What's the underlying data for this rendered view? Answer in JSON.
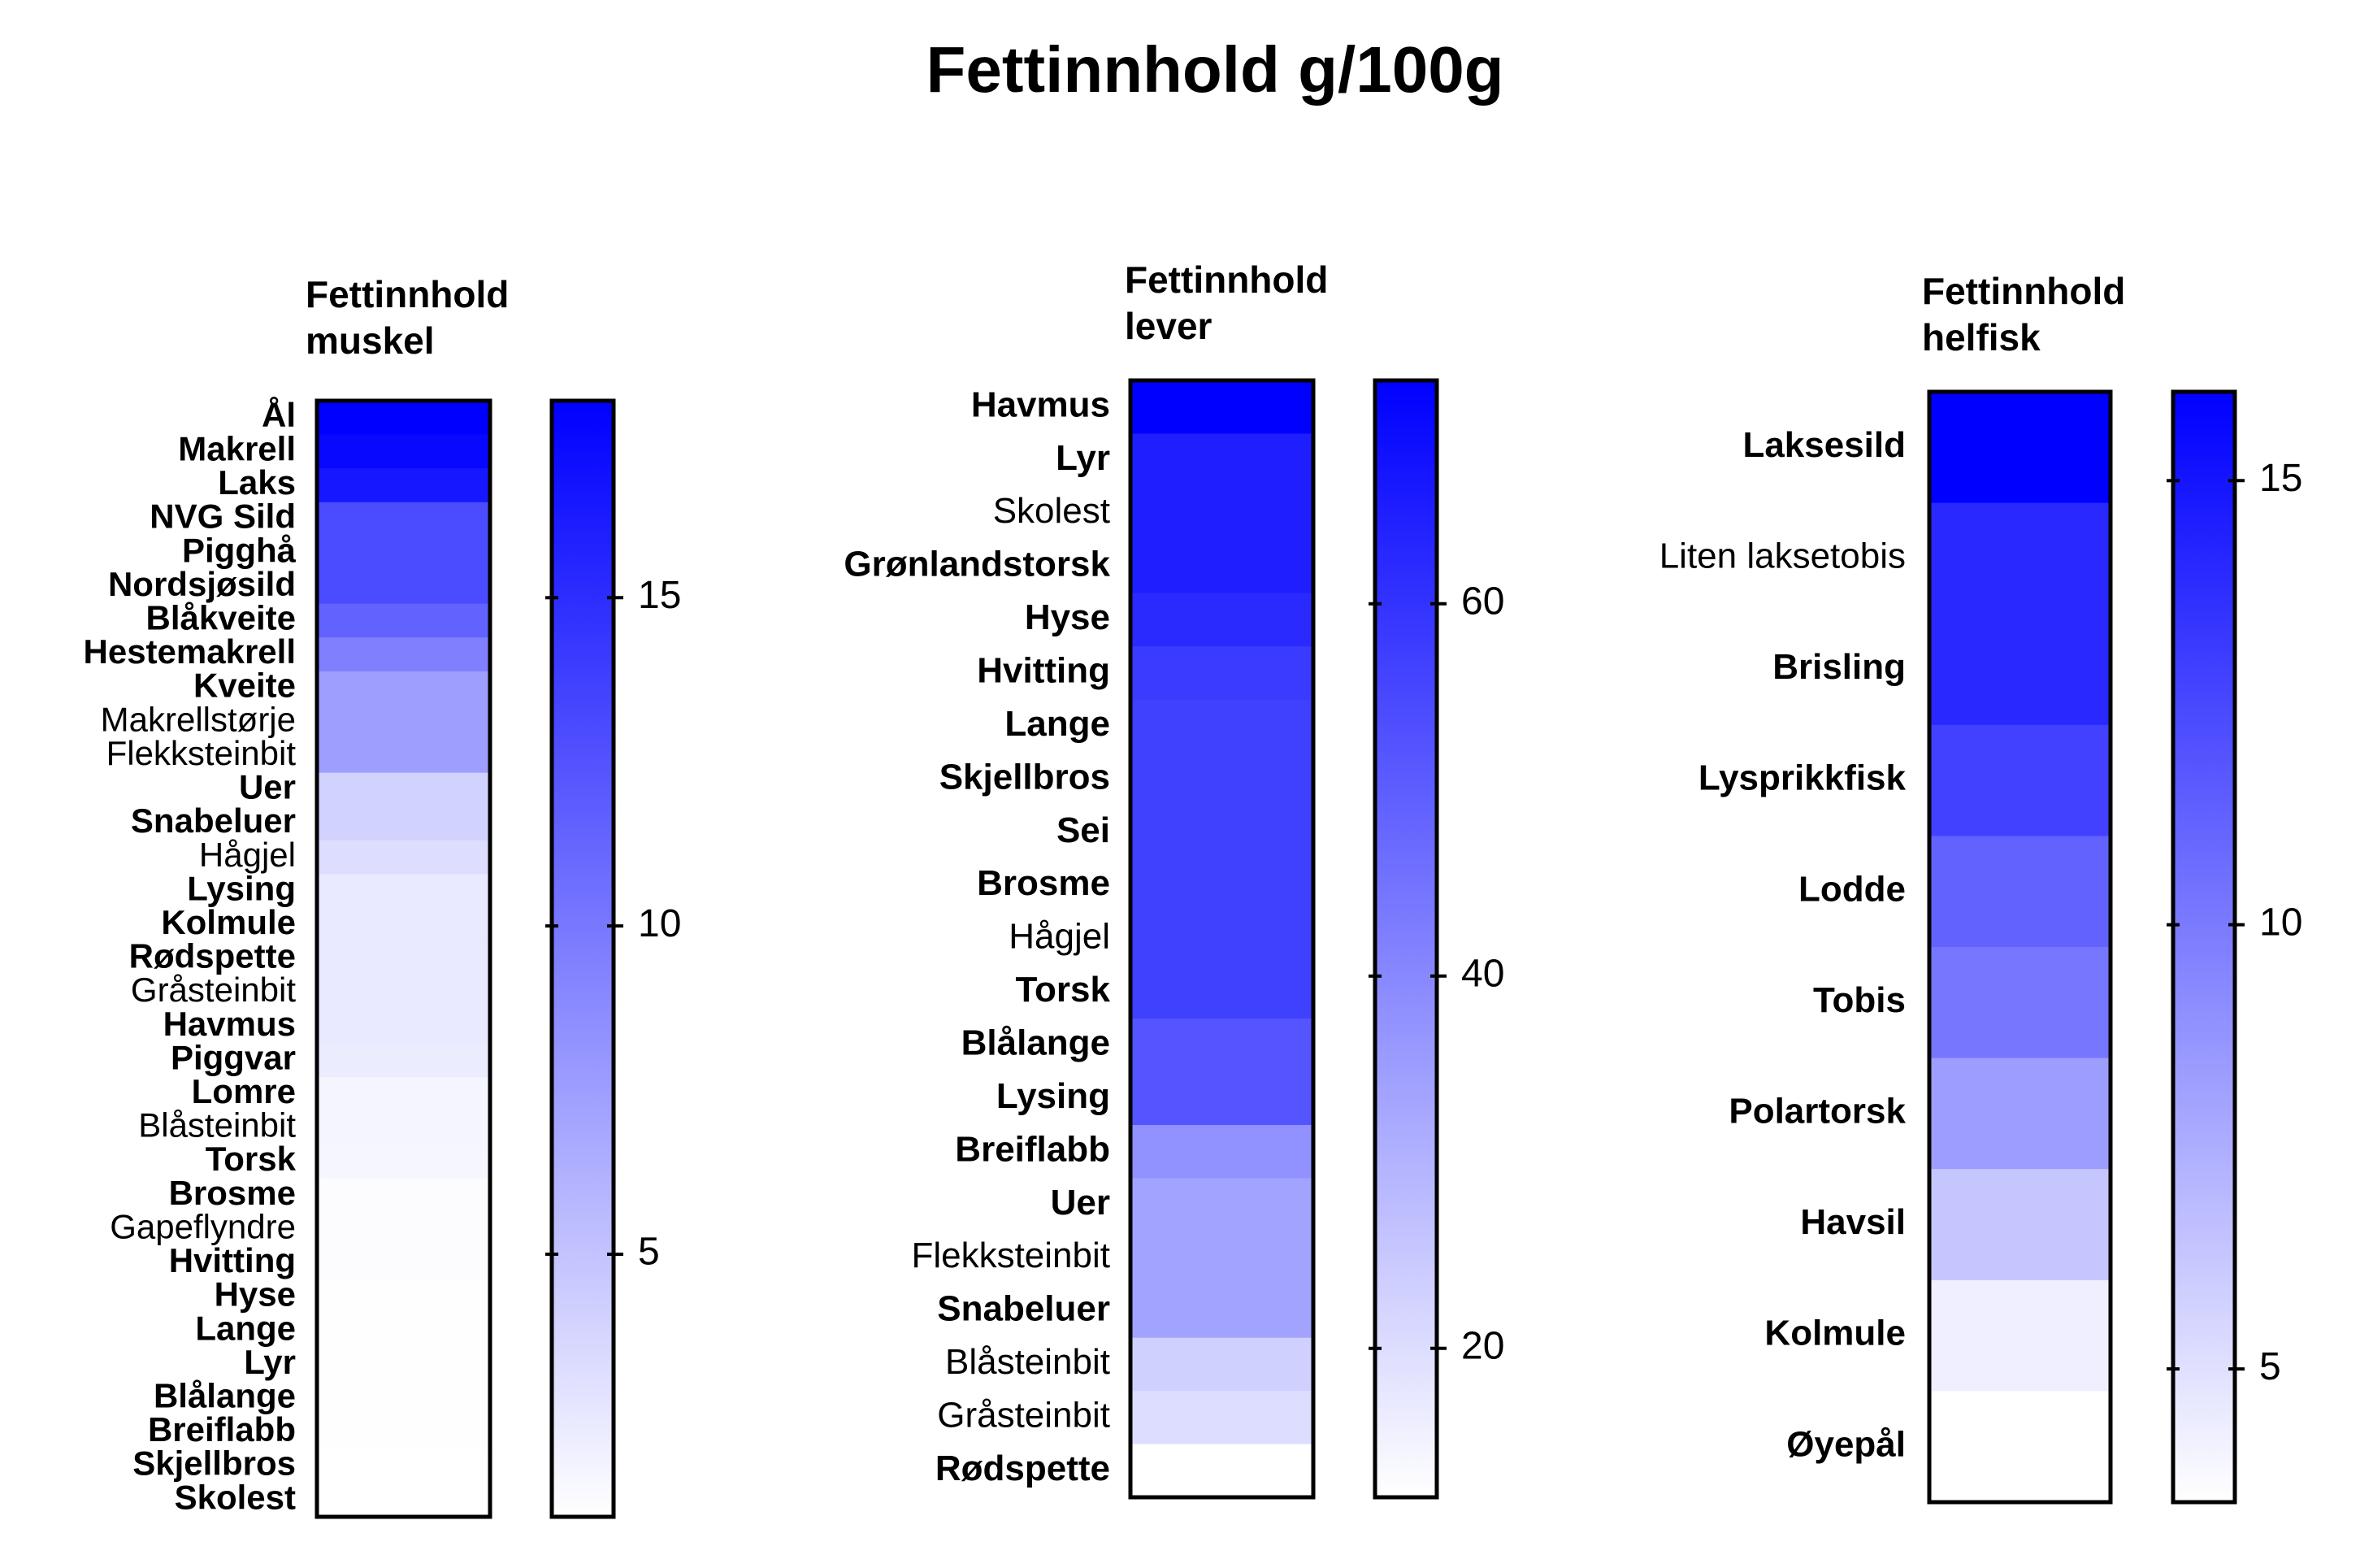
{
  "title": "Fettinnhold g/100g",
  "chart_data": [
    {
      "type": "heatmap",
      "title_lines": [
        "Fettinnhold",
        "muskel"
      ],
      "color_min": "#ffffff",
      "color_max": "#0000ff",
      "scale_range": [
        1,
        18
      ],
      "scale_ticks": [
        "5",
        "10",
        "15"
      ],
      "scale_tick_values": [
        5,
        10,
        15
      ],
      "rows": [
        {
          "label": "Ål",
          "value": 18,
          "bold": true
        },
        {
          "label": "Makrell",
          "value": 17.5,
          "bold": true
        },
        {
          "label": "Laks",
          "value": 16.5,
          "bold": true
        },
        {
          "label": "NVG Sild",
          "value": 13,
          "bold": true
        },
        {
          "label": "Pigghå",
          "value": 13,
          "bold": true
        },
        {
          "label": "Nordsjøsild",
          "value": 13,
          "bold": true
        },
        {
          "label": "Blåkveite",
          "value": 11.5,
          "bold": true
        },
        {
          "label": "Hestemakrell",
          "value": 9.5,
          "bold": true
        },
        {
          "label": "Kveite",
          "value": 7.5,
          "bold": true
        },
        {
          "label": "Makrellstørje",
          "value": 7.5,
          "bold": false
        },
        {
          "label": "Flekksteinbit",
          "value": 7.5,
          "bold": false
        },
        {
          "label": "Uer",
          "value": 4,
          "bold": true
        },
        {
          "label": "Snabeluer",
          "value": 4,
          "bold": true
        },
        {
          "label": "Hågjel",
          "value": 3.3,
          "bold": false
        },
        {
          "label": "Lysing",
          "value": 2.5,
          "bold": true
        },
        {
          "label": "Kolmule",
          "value": 2.5,
          "bold": true
        },
        {
          "label": "Rødspette",
          "value": 2.5,
          "bold": true
        },
        {
          "label": "Gråsteinbit",
          "value": 2.5,
          "bold": false
        },
        {
          "label": "Havmus",
          "value": 2.5,
          "bold": true
        },
        {
          "label": "Piggvar",
          "value": 2.3,
          "bold": true
        },
        {
          "label": "Lomre",
          "value": 1.7,
          "bold": true
        },
        {
          "label": "Blåsteinbit",
          "value": 1.7,
          "bold": false
        },
        {
          "label": "Torsk",
          "value": 1.6,
          "bold": true
        },
        {
          "label": "Brosme",
          "value": 1.2,
          "bold": true
        },
        {
          "label": "Gapeflyndre",
          "value": 1.2,
          "bold": false
        },
        {
          "label": "Hvitting",
          "value": 1.2,
          "bold": true
        },
        {
          "label": "Hyse",
          "value": 1.1,
          "bold": true
        },
        {
          "label": "Lange",
          "value": 1.1,
          "bold": true
        },
        {
          "label": "Lyr",
          "value": 1.1,
          "bold": true
        },
        {
          "label": "Blålange",
          "value": 1.1,
          "bold": true
        },
        {
          "label": "Breiflabb",
          "value": 1.1,
          "bold": true
        },
        {
          "label": "Skjellbros",
          "value": 1,
          "bold": true
        },
        {
          "label": "Skolest",
          "value": 1,
          "bold": true
        }
      ]
    },
    {
      "type": "heatmap",
      "title_lines": [
        "Fettinnhold",
        "lever"
      ],
      "color_min": "#ffffff",
      "color_max": "#0000ff",
      "scale_range": [
        12,
        72
      ],
      "scale_ticks": [
        "20",
        "40",
        "60"
      ],
      "scale_tick_values": [
        20,
        40,
        60
      ],
      "rows": [
        {
          "label": "Havmus",
          "value": 72,
          "bold": true
        },
        {
          "label": "Lyr",
          "value": 65,
          "bold": true
        },
        {
          "label": "Skolest",
          "value": 65,
          "bold": false
        },
        {
          "label": "Grønlandstorsk",
          "value": 65,
          "bold": true
        },
        {
          "label": "Hyse",
          "value": 62,
          "bold": true
        },
        {
          "label": "Hvitting",
          "value": 58,
          "bold": true
        },
        {
          "label": "Lange",
          "value": 57,
          "bold": true
        },
        {
          "label": "Skjellbros",
          "value": 57,
          "bold": true
        },
        {
          "label": "Sei",
          "value": 57,
          "bold": true
        },
        {
          "label": "Brosme",
          "value": 57,
          "bold": true
        },
        {
          "label": "Hågjel",
          "value": 57,
          "bold": false
        },
        {
          "label": "Torsk",
          "value": 57,
          "bold": true
        },
        {
          "label": "Blålange",
          "value": 52,
          "bold": true
        },
        {
          "label": "Lysing",
          "value": 52,
          "bold": true
        },
        {
          "label": "Breiflabb",
          "value": 38,
          "bold": true
        },
        {
          "label": "Uer",
          "value": 34,
          "bold": true
        },
        {
          "label": "Flekksteinbit",
          "value": 34,
          "bold": false
        },
        {
          "label": "Snabeluer",
          "value": 34,
          "bold": true
        },
        {
          "label": "Blåsteinbit",
          "value": 23,
          "bold": false
        },
        {
          "label": "Gråsteinbit",
          "value": 20,
          "bold": false
        },
        {
          "label": "Rødspette",
          "value": 12,
          "bold": true
        }
      ]
    },
    {
      "type": "heatmap",
      "title_lines": [
        "Fettinnhold",
        "helfisk"
      ],
      "color_min": "#ffffff",
      "color_max": "#0000ff",
      "scale_range": [
        3.5,
        16
      ],
      "scale_ticks": [
        "5",
        "10",
        "15"
      ],
      "scale_tick_values": [
        5,
        10,
        15
      ],
      "rows": [
        {
          "label": "Laksesild",
          "value": 16,
          "bold": true
        },
        {
          "label": "Liten laksetobis",
          "value": 14,
          "bold": false
        },
        {
          "label": "Brisling",
          "value": 14,
          "bold": true
        },
        {
          "label": "Lysprikkfisk",
          "value": 12.8,
          "bold": true
        },
        {
          "label": "Lodde",
          "value": 11.2,
          "bold": true
        },
        {
          "label": "Tobis",
          "value": 10.2,
          "bold": true
        },
        {
          "label": "Polartorsk",
          "value": 8.3,
          "bold": true
        },
        {
          "label": "Havsil",
          "value": 6.3,
          "bold": true
        },
        {
          "label": "Kolmule",
          "value": 4.3,
          "bold": true
        },
        {
          "label": "Øyepål",
          "value": 3.5,
          "bold": true
        }
      ]
    }
  ]
}
